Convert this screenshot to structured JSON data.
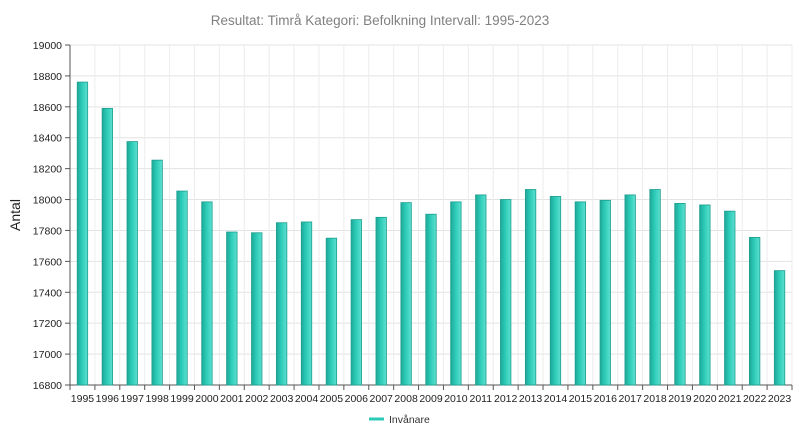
{
  "chart_data": {
    "type": "bar",
    "title": "Resultat: Timrå Kategori: Befolkning Intervall: 1995-2023",
    "xlabel": "",
    "ylabel": "Antal",
    "ylim": [
      16800,
      19000
    ],
    "yticks": [
      16800,
      17000,
      17200,
      17400,
      17600,
      17800,
      18000,
      18200,
      18400,
      18600,
      18800,
      19000
    ],
    "grid": true,
    "legend_position": "bottom",
    "categories": [
      "1995",
      "1996",
      "1997",
      "1998",
      "1999",
      "2000",
      "2001",
      "2002",
      "2003",
      "2004",
      "2005",
      "2006",
      "2007",
      "2008",
      "2009",
      "2010",
      "2011",
      "2012",
      "2013",
      "2014",
      "2015",
      "2016",
      "2017",
      "2018",
      "2019",
      "2020",
      "2021",
      "2022",
      "2023"
    ],
    "series": [
      {
        "name": "Invånare",
        "color": "#2ccbb8",
        "values": [
          18760,
          18590,
          18375,
          18255,
          18055,
          17985,
          17790,
          17785,
          17850,
          17855,
          17750,
          17870,
          17885,
          17980,
          17905,
          17985,
          18030,
          18000,
          18065,
          18020,
          17985,
          17995,
          18030,
          18065,
          17975,
          17965,
          17925,
          17755,
          17540
        ]
      }
    ]
  }
}
